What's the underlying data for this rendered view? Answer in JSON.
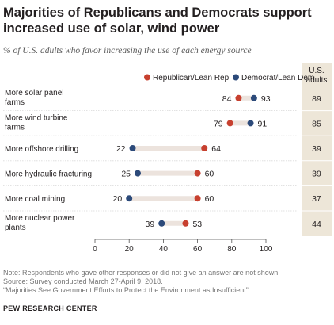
{
  "title": "Majorities of Republicans and Democrats support increased use of solar, wind power",
  "subtitle": "% of U.S. adults who favor increasing the use of each energy source",
  "notes": [
    "Note: Respondents who gave other responses or did not give an answer are not shown.",
    "Source: Survey conducted March 27-April 9, 2018.",
    "“Majorities See Government Efforts to Protect the Environment as Insufficient”"
  ],
  "source_org": "PEW RESEARCH CENTER",
  "colors": {
    "republican": "#c7402f",
    "democrat": "#2c4a7a",
    "connector": "#ece3dd",
    "column_bg": "#ede6d8",
    "axis": "#555555"
  },
  "chart_data": {
    "type": "dot",
    "categories": [
      [
        "More solar panel",
        "farms"
      ],
      [
        "More wind turbine",
        "farms"
      ],
      [
        "More offshore drilling"
      ],
      [
        "More hydraulic fracturing"
      ],
      [
        "More coal mining"
      ],
      [
        "More nuclear power",
        "plants"
      ]
    ],
    "series": [
      {
        "name": "Republican/Lean Rep",
        "values": [
          84,
          79,
          64,
          60,
          60,
          53
        ]
      },
      {
        "name": "Democrat/Lean Dem",
        "values": [
          93,
          91,
          22,
          25,
          20,
          39
        ]
      }
    ],
    "us_adults": {
      "header": [
        "U.S.",
        "adults"
      ],
      "values": [
        89,
        85,
        39,
        39,
        37,
        44
      ]
    },
    "xlim": [
      0,
      100
    ],
    "xticks": [
      0,
      20,
      40,
      60,
      80,
      100
    ],
    "legend_position": "top"
  }
}
